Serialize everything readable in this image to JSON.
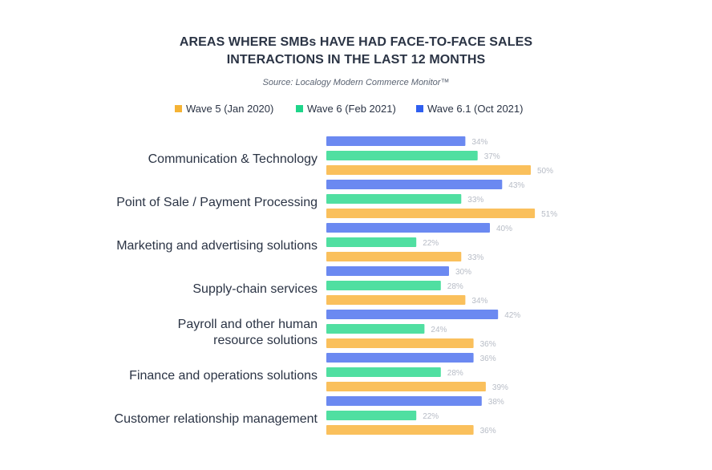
{
  "chart_data": {
    "type": "bar",
    "orientation": "horizontal",
    "title_lines": [
      "AREAS WHERE SMBs HAVE HAD FACE-TO-FACE SALES",
      "INTERACTIONS IN THE LAST 12 MONTHS"
    ],
    "subtitle": "Source: Localogy Modern Commerce Monitor™",
    "categories": [
      [
        "Communication & Technology"
      ],
      [
        "Point of Sale / Payment Processing"
      ],
      [
        "Marketing and advertising solutions"
      ],
      [
        "Supply-chain services"
      ],
      [
        "Payroll and other human",
        "resource solutions"
      ],
      [
        "Finance and operations solutions"
      ],
      [
        "Customer relationship management"
      ]
    ],
    "series": [
      {
        "name": "Wave 6.1 (Oct 2021)",
        "color": "#5b7cf0",
        "values": [
          34,
          43,
          40,
          30,
          42,
          36,
          38
        ],
        "labels": [
          "34%",
          "43%",
          "40%",
          "30%",
          "42%",
          "36%",
          "38%"
        ]
      },
      {
        "name": "Wave 6 (Feb 2021)",
        "color": "#3ddc97",
        "values": [
          37,
          33,
          22,
          28,
          24,
          28,
          22
        ],
        "labels": [
          "37%",
          "33%",
          "22%",
          "28%",
          "24%",
          "28%",
          "22%"
        ]
      },
      {
        "name": "Wave 5 (Jan 2020)",
        "color": "#f9b94a",
        "values": [
          50,
          51,
          33,
          34,
          36,
          39,
          36
        ],
        "labels": [
          "50%",
          "51%",
          "33%",
          "34%",
          "36%",
          "39%",
          "36%"
        ]
      }
    ],
    "legend_order": [
      {
        "name": "Wave 5 (Jan 2020)",
        "color": "#f5b335"
      },
      {
        "name": "Wave 6 (Feb 2021)",
        "color": "#1fd58a"
      },
      {
        "name": "Wave 6.1 (Oct 2021)",
        "color": "#2f5ff0"
      }
    ],
    "xlim": [
      0,
      100
    ],
    "grid": false,
    "legend_position": "top"
  }
}
